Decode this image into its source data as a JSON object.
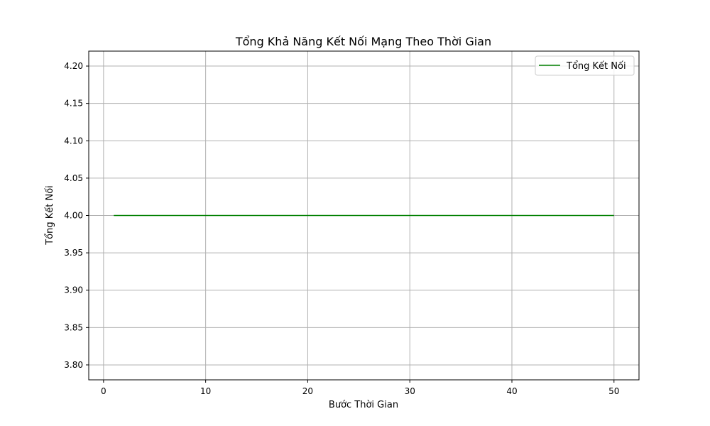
{
  "chart_data": {
    "type": "line",
    "title": "Tổng Khả Năng Kết Nối Mạng Theo Thời Gian",
    "xlabel": "Bước Thời Gian",
    "ylabel": "Tổng Kết Nối",
    "xlim": [
      -1.45,
      52.45
    ],
    "ylim": [
      3.78,
      4.22
    ],
    "xticks": [
      0,
      10,
      20,
      30,
      40,
      50
    ],
    "yticks": [
      3.8,
      3.85,
      3.9,
      3.95,
      4.0,
      4.05,
      4.1,
      4.15,
      4.2
    ],
    "ytick_labels": [
      "3.80",
      "3.85",
      "3.90",
      "3.95",
      "4.00",
      "4.05",
      "4.10",
      "4.15",
      "4.20"
    ],
    "grid": true,
    "legend_position": "top-right",
    "series": [
      {
        "name": "Tổng Kết Nối",
        "color": "#008000",
        "x": [
          1,
          2,
          3,
          4,
          5,
          6,
          7,
          8,
          9,
          10,
          11,
          12,
          13,
          14,
          15,
          16,
          17,
          18,
          19,
          20,
          21,
          22,
          23,
          24,
          25,
          26,
          27,
          28,
          29,
          30,
          31,
          32,
          33,
          34,
          35,
          36,
          37,
          38,
          39,
          40,
          41,
          42,
          43,
          44,
          45,
          46,
          47,
          48,
          49,
          50
        ],
        "y": [
          4,
          4,
          4,
          4,
          4,
          4,
          4,
          4,
          4,
          4,
          4,
          4,
          4,
          4,
          4,
          4,
          4,
          4,
          4,
          4,
          4,
          4,
          4,
          4,
          4,
          4,
          4,
          4,
          4,
          4,
          4,
          4,
          4,
          4,
          4,
          4,
          4,
          4,
          4,
          4,
          4,
          4,
          4,
          4,
          4,
          4,
          4,
          4,
          4,
          4
        ]
      }
    ]
  }
}
